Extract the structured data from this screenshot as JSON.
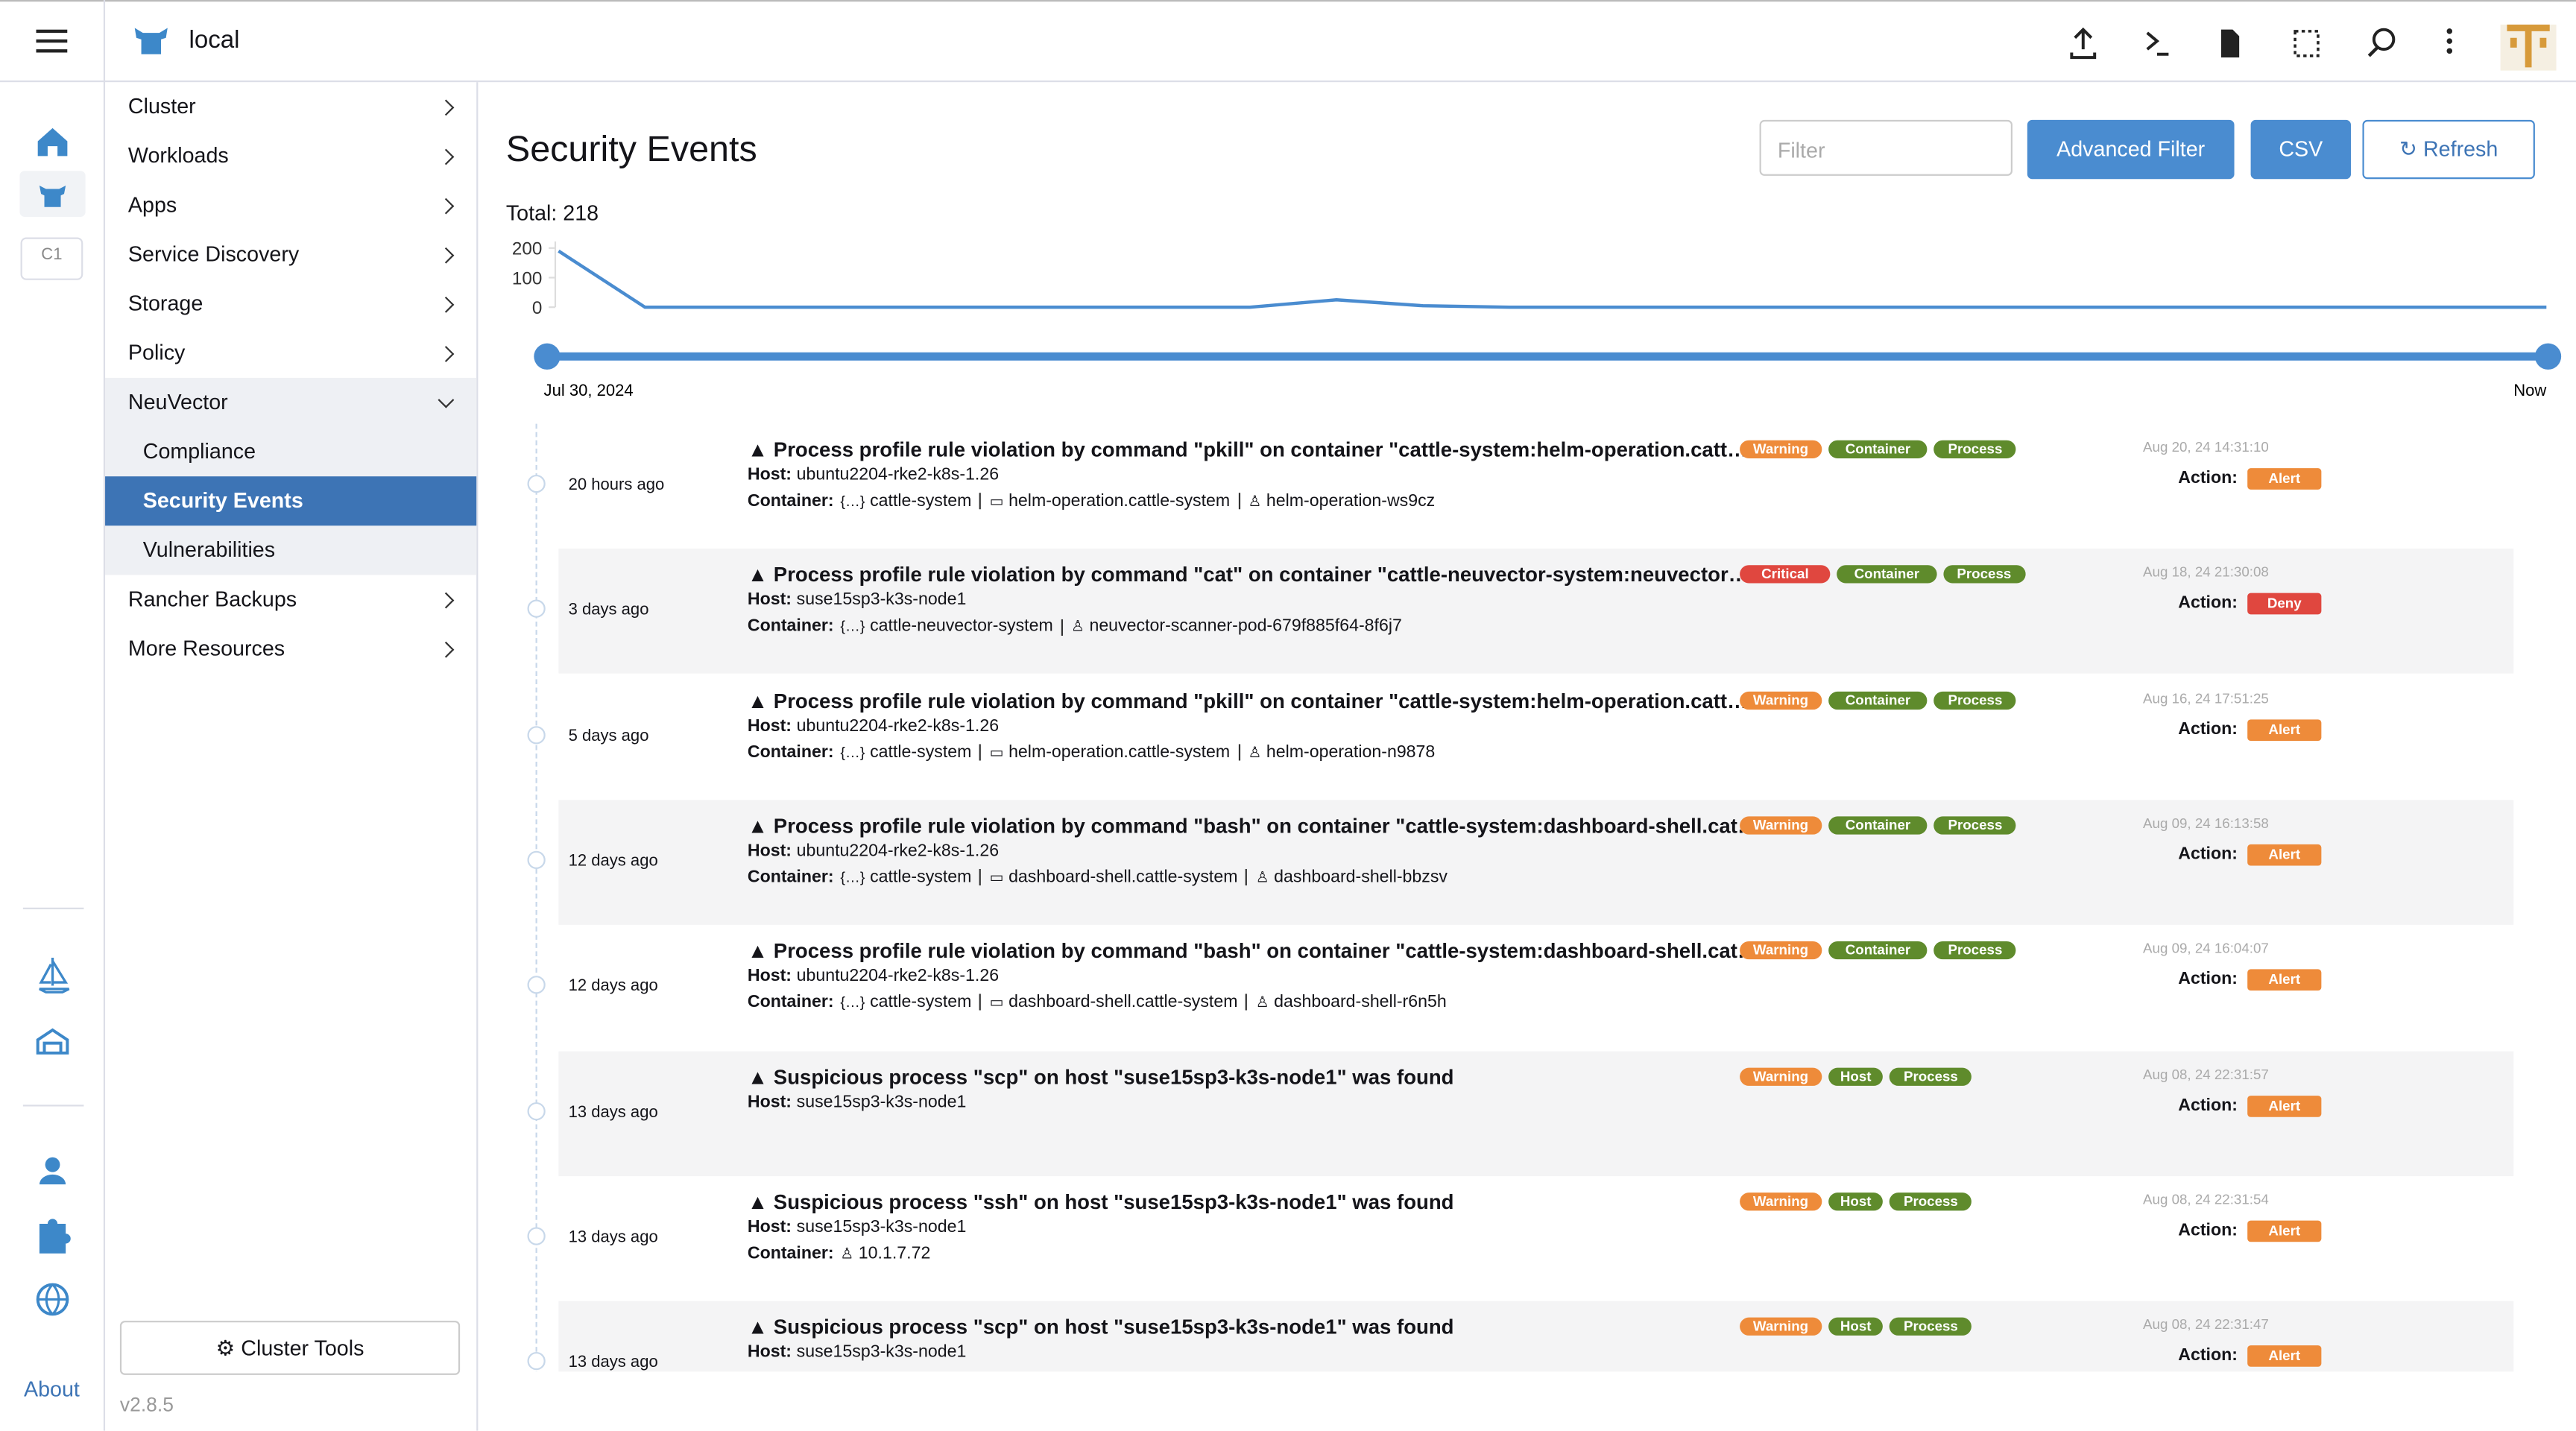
{
  "header": {
    "cluster": "local"
  },
  "rail": {
    "cluster_badge": "C1",
    "about": "About"
  },
  "nav": {
    "items": [
      {
        "label": "Cluster"
      },
      {
        "label": "Workloads"
      },
      {
        "label": "Apps"
      },
      {
        "label": "Service Discovery"
      },
      {
        "label": "Storage"
      },
      {
        "label": "Policy"
      },
      {
        "label": "NeuVector",
        "children": [
          {
            "label": "Compliance"
          },
          {
            "label": "Security Events",
            "selected": true
          },
          {
            "label": "Vulnerabilities"
          }
        ]
      },
      {
        "label": "Rancher Backups"
      },
      {
        "label": "More Resources"
      }
    ],
    "tools": "Cluster Tools",
    "version": "v2.8.5"
  },
  "page": {
    "title": "Security Events",
    "filter": "Filter",
    "buttons": [
      "Advanced Filter",
      "CSV",
      "Refresh"
    ],
    "total": "Total: 218"
  },
  "chart_data": {
    "type": "line",
    "ylim": [
      0,
      200
    ],
    "yticks": [
      0,
      100,
      200
    ],
    "values": [
      190,
      0,
      0,
      0,
      0,
      0,
      0,
      0,
      0,
      25,
      5,
      0,
      0,
      0,
      0,
      0,
      0,
      0,
      0,
      0,
      0,
      0,
      0,
      0
    ],
    "color": "#4a8cd0",
    "range_start": "Jul 30, 2024",
    "range_end": "Now"
  },
  "events": [
    {
      "time": "20 hours ago",
      "title": "Process profile rule violation by command \"pkill\" on container \"cattle-system:helm-operation.catt…",
      "host_label": "Host:",
      "host": "ubuntu2204-rke2-k8s-1.26",
      "container_label": "Container:",
      "container": [
        {
          "kind": "namespace",
          "text": "cattle-system"
        },
        {
          "kind": "service",
          "text": "helm-operation.cattle-system"
        },
        {
          "kind": "pod",
          "text": "helm-operation-ws9cz"
        }
      ],
      "tags": [
        {
          "text": "Warning",
          "level": "warning"
        },
        {
          "text": "Container",
          "level": "scope"
        },
        {
          "text": "Process",
          "level": "scope"
        }
      ],
      "date": "Aug 20, 24 14:31:10",
      "action_label": "Action:",
      "action": {
        "text": "Alert",
        "level": "warning"
      }
    },
    {
      "time": "3 days ago",
      "title": "Process profile rule violation by command \"cat\" on container \"cattle-neuvector-system:neuvector…",
      "host_label": "Host:",
      "host": "suse15sp3-k3s-node1",
      "container_label": "Container:",
      "container": [
        {
          "kind": "namespace",
          "text": "cattle-neuvector-system"
        },
        {
          "kind": "pod",
          "text": "neuvector-scanner-pod-679f885f64-8f6j7"
        }
      ],
      "tags": [
        {
          "text": "Critical",
          "level": "critical"
        },
        {
          "text": "Container",
          "level": "scope"
        },
        {
          "text": "Process",
          "level": "scope"
        }
      ],
      "date": "Aug 18, 24 21:30:08",
      "action_label": "Action:",
      "action": {
        "text": "Deny",
        "level": "critical"
      }
    },
    {
      "time": "5 days ago",
      "title": "Process profile rule violation by command \"pkill\" on container \"cattle-system:helm-operation.catt…",
      "host_label": "Host:",
      "host": "ubuntu2204-rke2-k8s-1.26",
      "container_label": "Container:",
      "container": [
        {
          "kind": "namespace",
          "text": "cattle-system"
        },
        {
          "kind": "service",
          "text": "helm-operation.cattle-system"
        },
        {
          "kind": "pod",
          "text": "helm-operation-n9878"
        }
      ],
      "tags": [
        {
          "text": "Warning",
          "level": "warning"
        },
        {
          "text": "Container",
          "level": "scope"
        },
        {
          "text": "Process",
          "level": "scope"
        }
      ],
      "date": "Aug 16, 24 17:51:25",
      "action_label": "Action:",
      "action": {
        "text": "Alert",
        "level": "warning"
      }
    },
    {
      "time": "12 days ago",
      "title": "Process profile rule violation by command \"bash\" on container \"cattle-system:dashboard-shell.cat…",
      "host_label": "Host:",
      "host": "ubuntu2204-rke2-k8s-1.26",
      "container_label": "Container:",
      "container": [
        {
          "kind": "namespace",
          "text": "cattle-system"
        },
        {
          "kind": "service",
          "text": "dashboard-shell.cattle-system"
        },
        {
          "kind": "pod",
          "text": "dashboard-shell-bbzsv"
        }
      ],
      "tags": [
        {
          "text": "Warning",
          "level": "warning"
        },
        {
          "text": "Container",
          "level": "scope"
        },
        {
          "text": "Process",
          "level": "scope"
        }
      ],
      "date": "Aug 09, 24 16:13:58",
      "action_label": "Action:",
      "action": {
        "text": "Alert",
        "level": "warning"
      }
    },
    {
      "time": "12 days ago",
      "title": "Process profile rule violation by command \"bash\" on container \"cattle-system:dashboard-shell.cat…",
      "host_label": "Host:",
      "host": "ubuntu2204-rke2-k8s-1.26",
      "container_label": "Container:",
      "container": [
        {
          "kind": "namespace",
          "text": "cattle-system"
        },
        {
          "kind": "service",
          "text": "dashboard-shell.cattle-system"
        },
        {
          "kind": "pod",
          "text": "dashboard-shell-r6n5h"
        }
      ],
      "tags": [
        {
          "text": "Warning",
          "level": "warning"
        },
        {
          "text": "Container",
          "level": "scope"
        },
        {
          "text": "Process",
          "level": "scope"
        }
      ],
      "date": "Aug 09, 24 16:04:07",
      "action_label": "Action:",
      "action": {
        "text": "Alert",
        "level": "warning"
      }
    },
    {
      "time": "13 days ago",
      "title": "Suspicious process \"scp\" on host \"suse15sp3-k3s-node1\" was found",
      "host_label": "Host:",
      "host": "suse15sp3-k3s-node1",
      "tags": [
        {
          "text": "Warning",
          "level": "warning"
        },
        {
          "text": "Host",
          "level": "scope"
        },
        {
          "text": "Process",
          "level": "scope"
        }
      ],
      "date": "Aug 08, 24 22:31:57",
      "action_label": "Action:",
      "action": {
        "text": "Alert",
        "level": "warning"
      }
    },
    {
      "time": "13 days ago",
      "title": "Suspicious process \"ssh\" on host \"suse15sp3-k3s-node1\" was found",
      "host_label": "Host:",
      "host": "suse15sp3-k3s-node1",
      "container_label": "Container:",
      "container": [
        {
          "kind": "pod",
          "text": "10.1.7.72"
        }
      ],
      "tags": [
        {
          "text": "Warning",
          "level": "warning"
        },
        {
          "text": "Host",
          "level": "scope"
        },
        {
          "text": "Process",
          "level": "scope"
        }
      ],
      "date": "Aug 08, 24 22:31:54",
      "action_label": "Action:",
      "action": {
        "text": "Alert",
        "level": "warning"
      }
    },
    {
      "time": "13 days ago",
      "title": "Suspicious process \"scp\" on host \"suse15sp3-k3s-node1\" was found",
      "host_label": "Host:",
      "host": "suse15sp3-k3s-node1",
      "tags": [
        {
          "text": "Warning",
          "level": "warning"
        },
        {
          "text": "Host",
          "level": "scope"
        },
        {
          "text": "Process",
          "level": "scope"
        }
      ],
      "date": "Aug 08, 24 22:31:47",
      "action_label": "Action:",
      "action": {
        "text": "Alert",
        "level": "warning"
      }
    }
  ]
}
